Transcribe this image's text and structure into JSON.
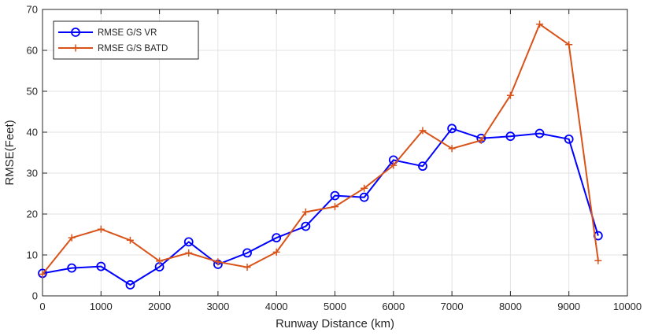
{
  "chart_data": {
    "type": "line",
    "title": "",
    "xlabel": "Runway Distance (km)",
    "ylabel": "RMSE(Feet)",
    "xlim": [
      0,
      10000
    ],
    "ylim": [
      0,
      70
    ],
    "xticks": [
      0,
      1000,
      2000,
      3000,
      4000,
      5000,
      6000,
      7000,
      8000,
      9000,
      10000
    ],
    "yticks": [
      0,
      10,
      20,
      30,
      40,
      50,
      60,
      70
    ],
    "grid": true,
    "legend_position": "top-left",
    "series": [
      {
        "name": "RMSE G/S VR",
        "color": "#0000ff",
        "marker": "circle",
        "x": [
          0,
          500,
          1000,
          1500,
          2000,
          2500,
          3000,
          3500,
          4000,
          4500,
          5000,
          5500,
          6000,
          6500,
          7000,
          7500,
          8000,
          8500,
          9000,
          9500
        ],
        "values": [
          5.5,
          6.8,
          7.2,
          2.7,
          7.1,
          13.2,
          7.7,
          10.5,
          14.2,
          17.0,
          24.5,
          24.1,
          33.2,
          31.7,
          40.9,
          38.5,
          39.0,
          39.7,
          38.3,
          14.7
        ]
      },
      {
        "name": "RMSE G/S BATD",
        "color": "#d95319",
        "marker": "plus",
        "x": [
          0,
          500,
          1000,
          1500,
          2000,
          2500,
          3000,
          3500,
          4000,
          4500,
          5000,
          5500,
          6000,
          6500,
          7000,
          7500,
          8000,
          8500,
          9000,
          9500
        ],
        "values": [
          5.3,
          14.2,
          16.3,
          13.6,
          8.5,
          10.5,
          8.3,
          7.0,
          10.7,
          20.5,
          21.8,
          26.3,
          31.9,
          40.4,
          36.0,
          38.0,
          49.0,
          66.4,
          61.4,
          8.6
        ]
      }
    ]
  }
}
